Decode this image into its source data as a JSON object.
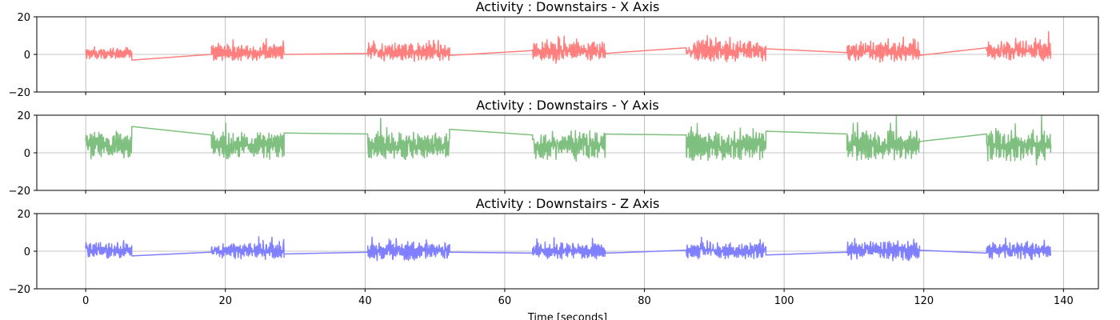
{
  "chart_data": [
    {
      "type": "line",
      "title": "Activity : Downstairs - X Axis",
      "xlabel": "",
      "ylabel": "",
      "xlim": [
        -7,
        145
      ],
      "ylim": [
        -20,
        20
      ],
      "xticks": [
        0,
        20,
        40,
        60,
        80,
        100,
        120,
        140
      ],
      "yticks": [
        -20,
        0,
        20
      ],
      "show_xtick_labels": false,
      "grid": true,
      "series": [
        {
          "color": "#ff7f7f",
          "segments": [
            {
              "x": [
                0.0,
                6.6
              ],
              "mean": 1.0,
              "amp": 3.5
            },
            {
              "x": [
                18.0,
                28.4
              ],
              "mean": 2.5,
              "amp": 5.0
            },
            {
              "x": [
                40.4,
                52.1
              ],
              "mean": 3.0,
              "amp": 6.0
            },
            {
              "x": [
                64.0,
                74.4
              ],
              "mean": 4.0,
              "amp": 6.0
            },
            {
              "x": [
                86.0,
                97.4
              ],
              "mean": 4.5,
              "amp": 6.5
            },
            {
              "x": [
                109.0,
                119.4
              ],
              "mean": 3.5,
              "amp": 6.0
            },
            {
              "x": [
                129.0,
                138.2
              ],
              "mean": 4.0,
              "amp": 6.0
            }
          ],
          "connectors": [
            {
              "x": [
                6.6,
                18.0
              ],
              "y": [
                -3.0,
                0.0
              ]
            },
            {
              "x": [
                28.4,
                40.4
              ],
              "y": [
                0.0,
                0.5
              ]
            },
            {
              "x": [
                52.1,
                64.0
              ],
              "y": [
                -0.5,
                2.0
              ]
            },
            {
              "x": [
                74.4,
                86.0
              ],
              "y": [
                0.5,
                3.5
              ]
            },
            {
              "x": [
                97.4,
                109.0
              ],
              "y": [
                3.0,
                1.0
              ]
            },
            {
              "x": [
                119.4,
                129.0
              ],
              "y": [
                -0.5,
                3.5
              ]
            }
          ]
        }
      ]
    },
    {
      "type": "line",
      "title": "Activity : Downstairs - Y Axis",
      "xlabel": "",
      "ylabel": "",
      "xlim": [
        -7,
        145
      ],
      "ylim": [
        -20,
        20
      ],
      "xticks": [
        0,
        20,
        40,
        60,
        80,
        100,
        120,
        140
      ],
      "yticks": [
        -20,
        0,
        20
      ],
      "show_xtick_labels": false,
      "grid": true,
      "series": [
        {
          "color": "#7fbf7f",
          "segments": [
            {
              "x": [
                0.0,
                6.6
              ],
              "mean": 9.5,
              "amp": 8.0
            },
            {
              "x": [
                18.0,
                28.4
              ],
              "mean": 10.0,
              "amp": 8.5
            },
            {
              "x": [
                40.4,
                52.1
              ],
              "mean": 9.5,
              "amp": 8.0
            },
            {
              "x": [
                64.0,
                74.4
              ],
              "mean": 10.0,
              "amp": 9.0
            },
            {
              "x": [
                86.0,
                97.4
              ],
              "mean": 9.5,
              "amp": 9.0
            },
            {
              "x": [
                109.0,
                119.4
              ],
              "mean": 10.0,
              "amp": 9.0
            },
            {
              "x": [
                129.0,
                138.2
              ],
              "mean": 10.0,
              "amp": 9.5
            }
          ],
          "connectors": [
            {
              "x": [
                6.6,
                18.0
              ],
              "y": [
                14.0,
                9.5
              ]
            },
            {
              "x": [
                28.4,
                40.4
              ],
              "y": [
                10.5,
                10.0
              ]
            },
            {
              "x": [
                52.1,
                64.0
              ],
              "y": [
                12.5,
                9.5
              ]
            },
            {
              "x": [
                74.4,
                86.0
              ],
              "y": [
                10.0,
                9.5
              ]
            },
            {
              "x": [
                97.4,
                109.0
              ],
              "y": [
                11.5,
                10.0
              ]
            },
            {
              "x": [
                119.4,
                129.0
              ],
              "y": [
                6.0,
                10.0
              ]
            }
          ]
        }
      ]
    },
    {
      "type": "line",
      "title": "Activity : Downstairs - Z Axis",
      "xlabel": "Time [seconds]",
      "ylabel": "",
      "xlim": [
        -7,
        145
      ],
      "ylim": [
        -20,
        20
      ],
      "xticks": [
        0,
        20,
        40,
        60,
        80,
        100,
        120,
        140
      ],
      "yticks": [
        -20,
        0,
        20
      ],
      "show_xtick_labels": true,
      "grid": true,
      "series": [
        {
          "color": "#7f7fff",
          "segments": [
            {
              "x": [
                0.0,
                6.6
              ],
              "mean": 1.0,
              "amp": 5.0
            },
            {
              "x": [
                18.0,
                28.4
              ],
              "mean": 0.5,
              "amp": 4.5
            },
            {
              "x": [
                40.4,
                52.1
              ],
              "mean": 0.5,
              "amp": 6.0
            },
            {
              "x": [
                64.0,
                74.4
              ],
              "mean": 0.5,
              "amp": 5.0
            },
            {
              "x": [
                86.0,
                97.4
              ],
              "mean": 0.5,
              "amp": 5.0
            },
            {
              "x": [
                109.0,
                119.4
              ],
              "mean": 0.5,
              "amp": 6.0
            },
            {
              "x": [
                129.0,
                138.2
              ],
              "mean": 0.5,
              "amp": 5.0
            }
          ],
          "connectors": [
            {
              "x": [
                6.6,
                18.0
              ],
              "y": [
                -2.5,
                -0.5
              ]
            },
            {
              "x": [
                28.4,
                40.4
              ],
              "y": [
                -1.5,
                -0.5
              ]
            },
            {
              "x": [
                52.1,
                64.0
              ],
              "y": [
                -0.5,
                -1.0
              ]
            },
            {
              "x": [
                74.4,
                86.0
              ],
              "y": [
                -1.0,
                0.5
              ]
            },
            {
              "x": [
                97.4,
                109.0
              ],
              "y": [
                -2.0,
                -0.5
              ]
            },
            {
              "x": [
                119.4,
                129.0
              ],
              "y": [
                0.5,
                -1.0
              ]
            }
          ]
        }
      ]
    }
  ]
}
